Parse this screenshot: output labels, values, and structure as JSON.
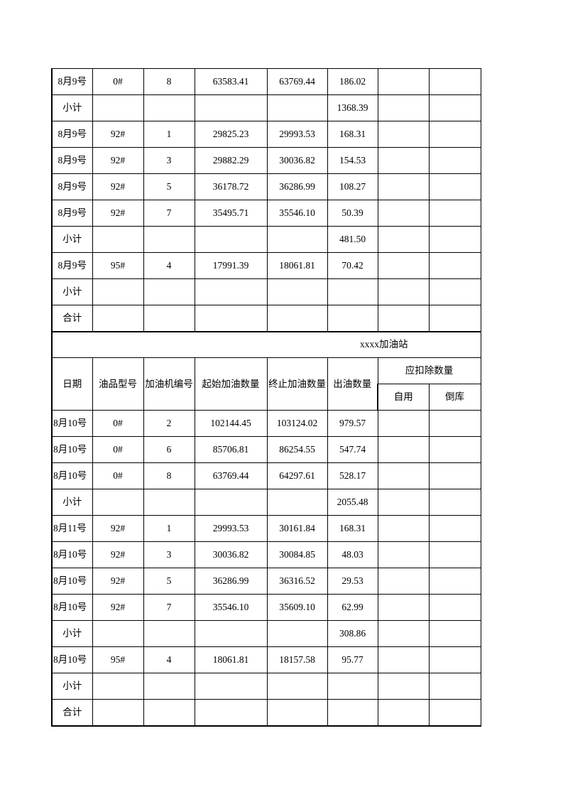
{
  "section1": {
    "rows": [
      [
        "8月9号",
        "0#",
        "8",
        "63583.41",
        "63769.44",
        "186.02",
        "",
        ""
      ],
      [
        "小计",
        "",
        "",
        "",
        "",
        "1368.39",
        "",
        ""
      ],
      [
        "8月9号",
        "92#",
        "1",
        "29825.23",
        "29993.53",
        "168.31",
        "",
        ""
      ],
      [
        "8月9号",
        "92#",
        "3",
        "29882.29",
        "30036.82",
        "154.53",
        "",
        ""
      ],
      [
        "8月9号",
        "92#",
        "5",
        "36178.72",
        "36286.99",
        "108.27",
        "",
        ""
      ],
      [
        "8月9号",
        "92#",
        "7",
        "35495.71",
        "35546.10",
        "50.39",
        "",
        ""
      ],
      [
        "小计",
        "",
        "",
        "",
        "",
        "481.50",
        "",
        ""
      ],
      [
        "8月9号",
        "95#",
        "4",
        "17991.39",
        "18061.81",
        "70.42",
        "",
        ""
      ],
      [
        "小计",
        "",
        "",
        "",
        "",
        "",
        "",
        ""
      ],
      [
        "合计",
        "",
        "",
        "",
        "",
        "",
        "",
        ""
      ]
    ]
  },
  "section2": {
    "title": "xxxx加油站",
    "headers": {
      "date": "日期",
      "oil_type": "油品型号",
      "pump_no": "加油机编号",
      "start_qty": "起始加油数量",
      "end_qty": "终止加油数量",
      "out_qty": "出油数量",
      "deduct": "应扣除数量",
      "self_use": "自用",
      "transfer": "倒库"
    },
    "rows": [
      [
        "8月10号",
        "0#",
        "2",
        "102144.45",
        "103124.02",
        "979.57",
        "",
        ""
      ],
      [
        "8月10号",
        "0#",
        "6",
        "85706.81",
        "86254.55",
        "547.74",
        "",
        ""
      ],
      [
        "8月10号",
        "0#",
        "8",
        "63769.44",
        "64297.61",
        "528.17",
        "",
        ""
      ],
      [
        "小计",
        "",
        "",
        "",
        "",
        "2055.48",
        "",
        ""
      ],
      [
        "8月11号",
        "92#",
        "1",
        "29993.53",
        "30161.84",
        "168.31",
        "",
        ""
      ],
      [
        "8月10号",
        "92#",
        "3",
        "30036.82",
        "30084.85",
        "48.03",
        "",
        ""
      ],
      [
        "8月10号",
        "92#",
        "5",
        "36286.99",
        "36316.52",
        "29.53",
        "",
        ""
      ],
      [
        "8月10号",
        "92#",
        "7",
        "35546.10",
        "35609.10",
        "62.99",
        "",
        ""
      ],
      [
        "小计",
        "",
        "",
        "",
        "",
        "308.86",
        "",
        ""
      ],
      [
        "8月10号",
        "95#",
        "4",
        "18061.81",
        "18157.58",
        "95.77",
        "",
        ""
      ],
      [
        "小计",
        "",
        "",
        "",
        "",
        "",
        "",
        ""
      ],
      [
        "合计",
        "",
        "",
        "",
        "",
        "",
        "",
        ""
      ]
    ]
  }
}
